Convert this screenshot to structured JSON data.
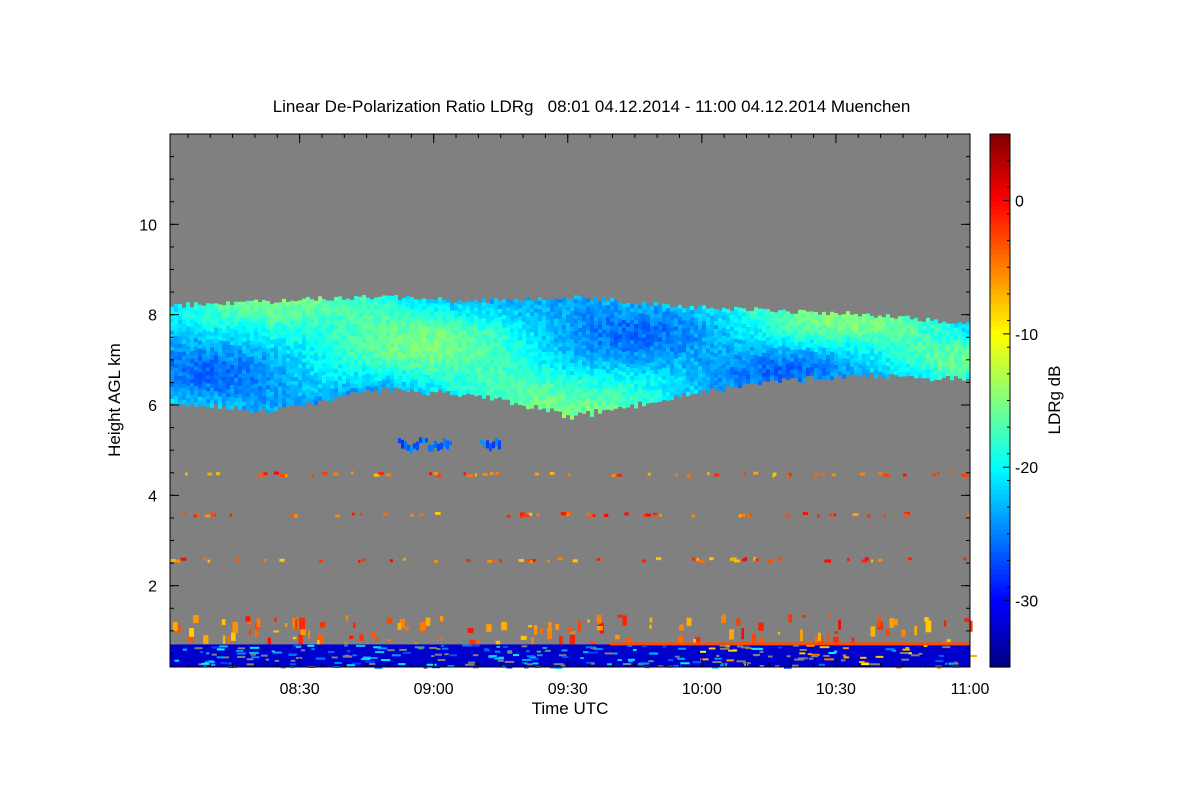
{
  "chart_data": {
    "type": "heatmap",
    "title": "Linear De-Polarization Ratio LDRg   08:01 04.12.2014 - 11:00 04.12.2014 Muenchen",
    "xlabel": "Time UTC",
    "ylabel": "Height AGL km",
    "x_range": [
      "08:01",
      "11:00"
    ],
    "x_ticks": [
      "08:30",
      "09:00",
      "09:30",
      "10:00",
      "10:30",
      "11:00"
    ],
    "y_range_km": [
      0.2,
      12.0
    ],
    "y_ticks": [
      2,
      4,
      6,
      8,
      10
    ],
    "colorbar": {
      "label": "LDRg dB",
      "range_db": [
        -35,
        5
      ],
      "ticks": [
        0,
        -10,
        -20,
        -30
      ],
      "colormap": "jet"
    },
    "no_data_color": "#808080",
    "features": [
      {
        "name": "cirrus layer",
        "time_start": "08:01",
        "time_end": "11:00",
        "base_km": [
          6.1,
          5.9,
          6.4,
          6.3,
          5.8,
          6.2,
          6.6,
          6.7,
          6.6
        ],
        "top_km": [
          8.2,
          8.3,
          8.4,
          8.3,
          8.4,
          8.2,
          8.1,
          8.0,
          7.8
        ],
        "ldr_db_range": [
          -27,
          -15
        ]
      },
      {
        "name": "small patches",
        "height_km": 5.2,
        "ldr_db": -26
      },
      {
        "name": "near-surface layer",
        "height_km": [
          0.2,
          0.7
        ],
        "ldr_db": -32
      },
      {
        "name": "speckle lines",
        "heights_km": [
          4.5,
          3.6,
          2.6,
          1.2
        ],
        "ldr_db_range": [
          -8,
          0
        ]
      }
    ]
  }
}
